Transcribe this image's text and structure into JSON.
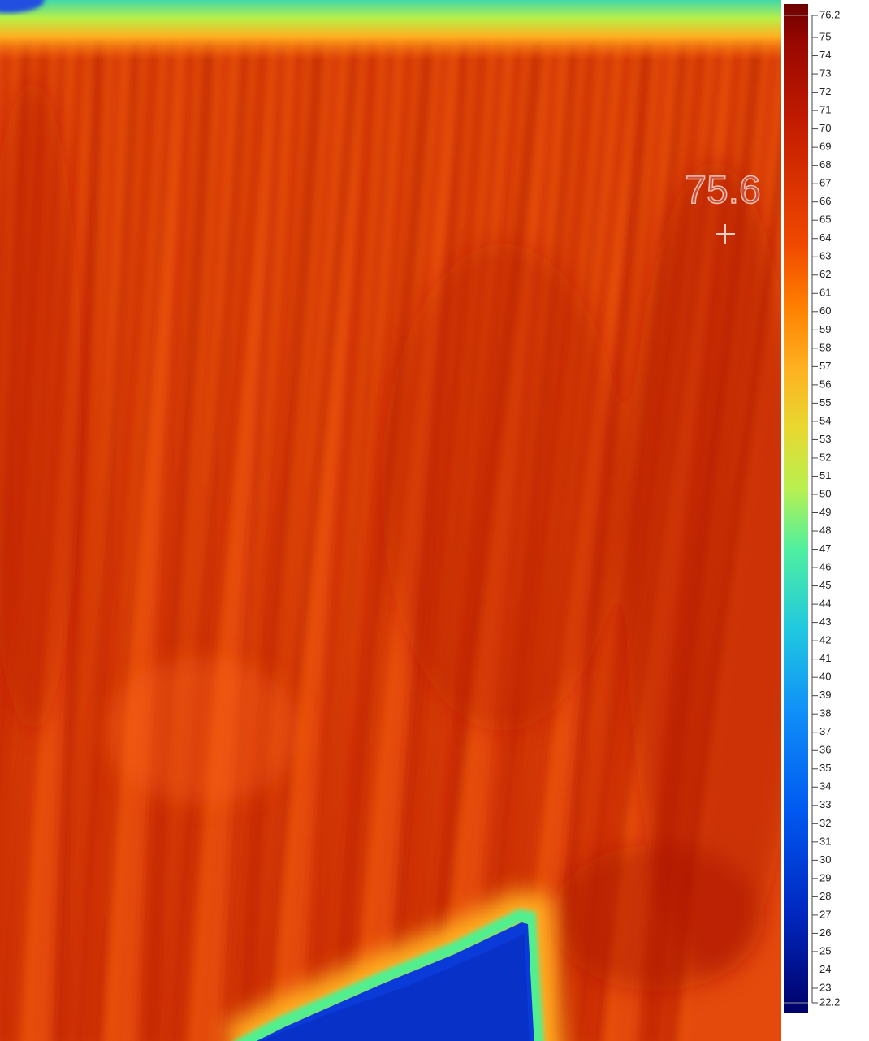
{
  "spot_temperature": 75.6,
  "colorbar": {
    "range": [
      22.2,
      76.2
    ],
    "ticks": [
      76.2,
      75,
      74,
      73,
      72,
      71,
      70,
      69,
      68,
      67,
      66,
      65,
      64,
      63,
      62,
      61,
      60,
      59,
      58,
      57,
      56,
      55,
      54,
      53,
      52,
      51,
      50,
      49,
      48,
      47,
      46,
      45,
      44,
      43,
      42,
      41,
      40,
      39,
      38,
      37,
      36,
      35,
      34,
      33,
      32,
      31,
      30,
      29,
      28,
      27,
      26,
      25,
      24,
      23,
      22.2
    ]
  }
}
